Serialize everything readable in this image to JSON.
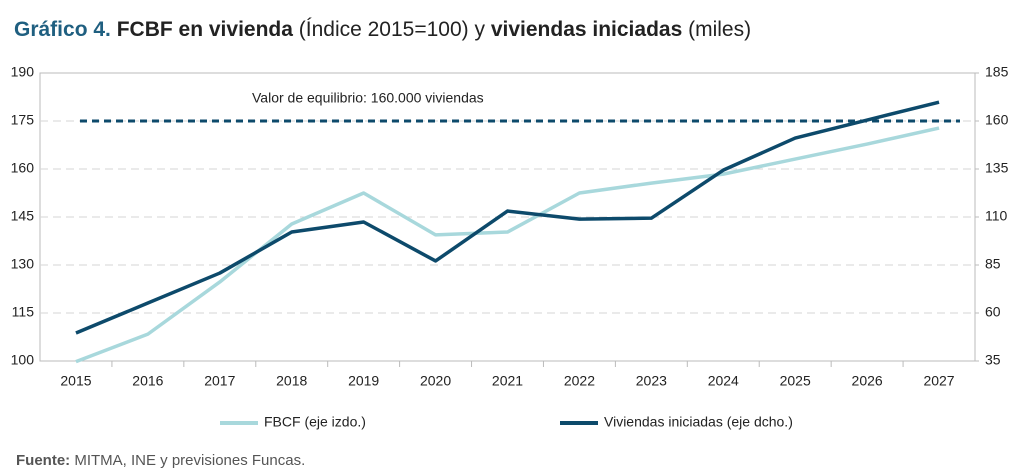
{
  "chart_data": {
    "type": "line",
    "title_parts": [
      "Gráfico 4.",
      "FCBF en vivienda",
      "(Índice 2015=100) y",
      "viviendas iniciadas",
      "(miles)"
    ],
    "categories": [
      "2015",
      "2016",
      "2017",
      "2018",
      "2019",
      "2020",
      "2021",
      "2022",
      "2023",
      "2024",
      "2025",
      "2026",
      "2027"
    ],
    "series": [
      {
        "name": "FBCF (eje izdo.)",
        "color": "#a8d8dc",
        "axis": "y",
        "values": [
          99.8,
          108.4,
          124.7,
          142.8,
          152.5,
          139.4,
          140.3,
          152.5,
          155.6,
          158.4,
          163.1,
          167.8,
          172.8
        ]
      },
      {
        "name": "Viviendas iniciadas (eje dcho.)",
        "color": "#0d4a6b",
        "axis": "y2",
        "values": [
          49.6,
          65.2,
          80.8,
          102.2,
          107.4,
          87.1,
          113.1,
          108.9,
          109.4,
          134.4,
          151.1,
          160.5,
          169.8
        ]
      }
    ],
    "reference_line": {
      "label": "Valor de equilibrio: 160.000 viviendas",
      "value": 160,
      "axis": "y2",
      "color": "#0d4a6b"
    },
    "ylim": [
      100,
      190
    ],
    "yticks": [
      100,
      115,
      130,
      145,
      160,
      175,
      190
    ],
    "y2lim": [
      35,
      185
    ],
    "y2ticks": [
      35,
      60,
      85,
      110,
      135,
      160,
      185
    ],
    "grid": true,
    "source_label": "Fuente:",
    "source": "MITMA, INE y previsiones Funcas."
  }
}
